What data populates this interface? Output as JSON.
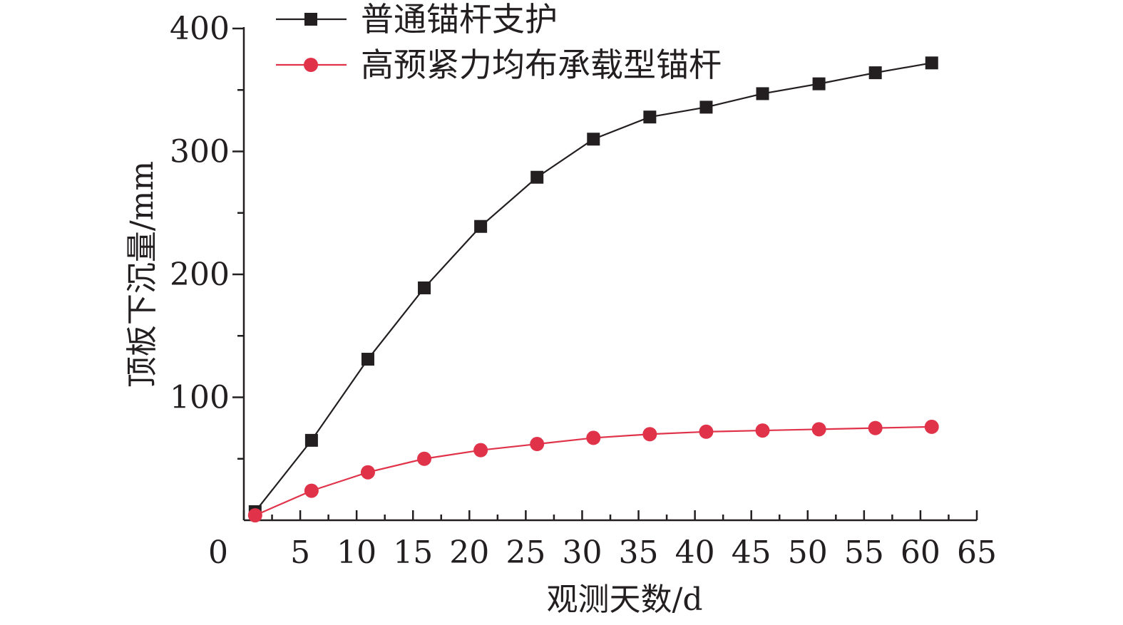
{
  "chart_data": {
    "type": "line",
    "title": "",
    "xlabel": "观测天数/d",
    "ylabel": "顶板下沉量/mm",
    "xlim": [
      0,
      65
    ],
    "ylim": [
      0,
      400
    ],
    "xticks": [
      0,
      5,
      10,
      15,
      20,
      25,
      30,
      35,
      40,
      45,
      50,
      55,
      60,
      65
    ],
    "yticks": [
      100,
      200,
      300,
      400
    ],
    "grid": false,
    "legend_position": "top-left",
    "x": [
      1,
      6,
      11,
      16,
      21,
      26,
      31,
      36,
      41,
      46,
      51,
      56,
      61
    ],
    "series": [
      {
        "name": "普通锚杆支护",
        "marker": "square",
        "color": "#231f20",
        "values": [
          7,
          65,
          131,
          189,
          239,
          279,
          310,
          328,
          336,
          347,
          355,
          364,
          372
        ]
      },
      {
        "name": "高预紧力均布承载型锚杆",
        "marker": "circle",
        "color": "#e0334a",
        "values": [
          4,
          24,
          39,
          50,
          57,
          62,
          67,
          70,
          72,
          73,
          74,
          75,
          76
        ]
      }
    ]
  }
}
